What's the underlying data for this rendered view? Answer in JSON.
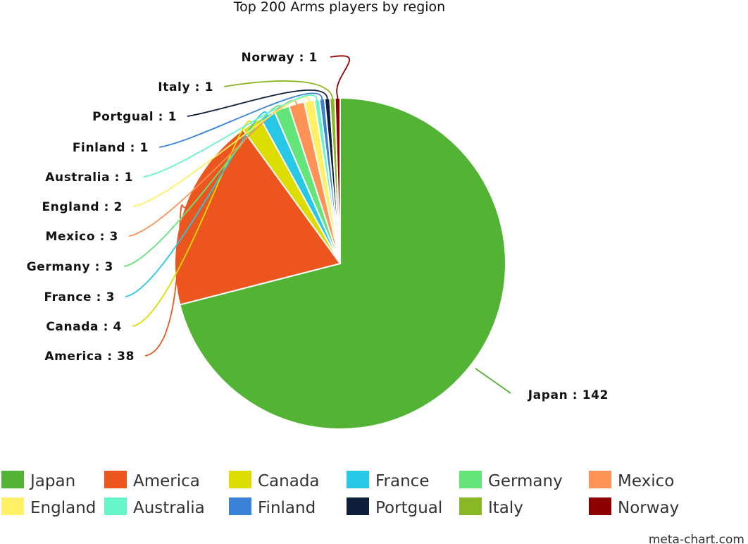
{
  "chart_data": {
    "type": "pie",
    "title": "Top 200 Arms players by region",
    "slices": [
      {
        "label": "Japan",
        "value": 142,
        "color": "#52b334"
      },
      {
        "label": "America",
        "value": 38,
        "color": "#ec561e"
      },
      {
        "label": "Canada",
        "value": 4,
        "color": "#dddd00"
      },
      {
        "label": "France",
        "value": 3,
        "color": "#27c8e5"
      },
      {
        "label": "Germany",
        "value": 3,
        "color": "#64e57a"
      },
      {
        "label": "Mexico",
        "value": 3,
        "color": "#ff9257"
      },
      {
        "label": "England",
        "value": 2,
        "color": "#fff066"
      },
      {
        "label": "Australia",
        "value": 1,
        "color": "#66f5c8"
      },
      {
        "label": "Finland",
        "value": 1,
        "color": "#3a81d8"
      },
      {
        "label": "Portgual",
        "value": 1,
        "color": "#0f1f39"
      },
      {
        "label": "Italy",
        "value": 1,
        "color": "#8ab725"
      },
      {
        "label": "Norway",
        "value": 1,
        "color": "#8e0000"
      }
    ],
    "legend": "bottom"
  },
  "watermark": "meta-chart.com"
}
